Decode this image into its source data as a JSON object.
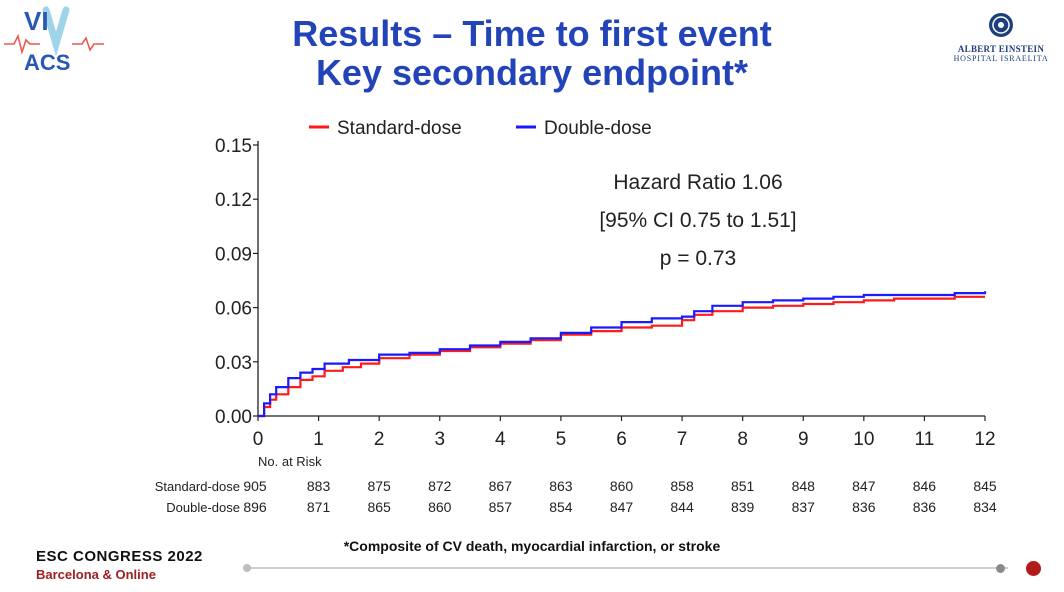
{
  "header": {
    "logo_left": {
      "line1": "VI",
      "line2": "ACS",
      "icon": "vip-acs-logo-icon",
      "colors": {
        "text": "#2a58b5",
        "accent": "#e85a4f",
        "ribbon": "#9fd3ea"
      }
    },
    "title_line1": "Results – Time to first event",
    "title_line2": "Key secondary endpoint*",
    "logo_right": {
      "line1": "ALBERT EINSTEIN",
      "line2": "HOSPITAL ISRAELITA",
      "icon": "albert-einstein-emblem-icon"
    }
  },
  "chart_data": {
    "type": "line",
    "xlabel": "",
    "ylabel": "",
    "xlim": [
      0,
      12
    ],
    "ylim": [
      0,
      0.15
    ],
    "x_ticks": [
      "0",
      "1",
      "2",
      "3",
      "4",
      "5",
      "6",
      "7",
      "8",
      "9",
      "10",
      "11",
      "12"
    ],
    "y_ticks": [
      "0.00",
      "0.03",
      "0.06",
      "0.09",
      "0.12",
      "0.15"
    ],
    "grid": false,
    "legend": {
      "position": "top",
      "entries": [
        "Standard-dose",
        "Double-dose"
      ]
    },
    "annotation": [
      "Hazard Ratio 1.06",
      "[95% CI 0.75 to 1.51]",
      "p = 0.73"
    ],
    "series": [
      {
        "name": "Standard-dose",
        "color": "#ff1a1a",
        "step": true,
        "x": [
          0,
          0.1,
          0.2,
          0.3,
          0.5,
          0.7,
          0.9,
          1.1,
          1.4,
          1.7,
          2.0,
          2.5,
          3.0,
          3.5,
          4.0,
          4.5,
          5.0,
          5.5,
          6.0,
          6.5,
          7.0,
          7.2,
          7.5,
          8.0,
          8.5,
          9.0,
          9.5,
          10.0,
          10.5,
          11.0,
          11.5,
          12.0
        ],
        "y": [
          0,
          0.005,
          0.009,
          0.012,
          0.016,
          0.02,
          0.022,
          0.025,
          0.027,
          0.029,
          0.032,
          0.034,
          0.036,
          0.038,
          0.04,
          0.042,
          0.045,
          0.047,
          0.049,
          0.05,
          0.053,
          0.056,
          0.058,
          0.06,
          0.061,
          0.062,
          0.063,
          0.064,
          0.065,
          0.065,
          0.066,
          0.066
        ]
      },
      {
        "name": "Double-dose",
        "color": "#1a1aff",
        "step": true,
        "x": [
          0,
          0.1,
          0.2,
          0.3,
          0.5,
          0.7,
          0.9,
          1.1,
          1.5,
          2.0,
          2.5,
          3.0,
          3.5,
          4.0,
          4.5,
          5.0,
          5.5,
          6.0,
          6.5,
          7.0,
          7.2,
          7.5,
          8.0,
          8.5,
          9.0,
          9.5,
          10.0,
          10.5,
          11.0,
          11.5,
          12.0
        ],
        "y": [
          0,
          0.007,
          0.012,
          0.016,
          0.021,
          0.024,
          0.026,
          0.029,
          0.031,
          0.034,
          0.035,
          0.037,
          0.039,
          0.041,
          0.043,
          0.046,
          0.049,
          0.052,
          0.054,
          0.055,
          0.058,
          0.061,
          0.063,
          0.064,
          0.065,
          0.066,
          0.067,
          0.067,
          0.067,
          0.068,
          0.069
        ]
      }
    ],
    "risk_table": {
      "title": "No. at Risk",
      "rows": [
        {
          "label": "Standard-dose",
          "values": [
            "905",
            "883",
            "875",
            "872",
            "867",
            "863",
            "860",
            "858",
            "851",
            "848",
            "847",
            "846",
            "845"
          ]
        },
        {
          "label": "Double-dose",
          "values": [
            "896",
            "871",
            "865",
            "860",
            "857",
            "854",
            "847",
            "844",
            "839",
            "837",
            "836",
            "836",
            "834"
          ]
        }
      ]
    }
  },
  "footer": {
    "footnote": "*Composite of CV death, myocardial infarction, or stroke",
    "congress_name": "ESC CONGRESS 2022",
    "congress_location": "Barcelona & Online",
    "progress_dots": {
      "colors": [
        "#bdbdbd",
        "#8a8a8a",
        "#b31b1b"
      ]
    }
  }
}
